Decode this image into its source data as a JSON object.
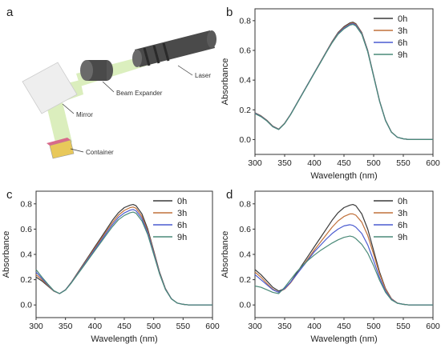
{
  "panels": {
    "a": {
      "letter": "a",
      "labels": {
        "laser": "Laser",
        "beam_expander": "Beam Expander",
        "mirror": "Mirror",
        "container": "Container"
      }
    }
  },
  "colors": {
    "series": [
      "#3a3a3a",
      "#c0703a",
      "#4a5bd0",
      "#4a8a78"
    ],
    "beam": "#b9e08a",
    "laser_body": "#4a4a4a"
  },
  "chart_data": [
    {
      "panel": "b",
      "type": "line",
      "xlabel": "Wavelength (nm)",
      "ylabel": "Absorbance",
      "xlim": [
        300,
        600
      ],
      "ylim": [
        -0.1,
        0.88
      ],
      "xticks": [
        300,
        350,
        400,
        450,
        500,
        550,
        600
      ],
      "yticks": [
        0.0,
        0.2,
        0.4,
        0.6,
        0.8
      ],
      "legend": "top-right",
      "x": [
        300,
        310,
        320,
        330,
        340,
        350,
        360,
        370,
        380,
        390,
        400,
        410,
        420,
        430,
        440,
        450,
        460,
        465,
        470,
        480,
        490,
        500,
        510,
        520,
        530,
        540,
        550,
        560,
        570,
        580,
        590,
        600
      ],
      "series": [
        {
          "name": "0h",
          "values": [
            0.18,
            0.16,
            0.13,
            0.09,
            0.07,
            0.11,
            0.17,
            0.24,
            0.31,
            0.38,
            0.45,
            0.52,
            0.59,
            0.66,
            0.72,
            0.76,
            0.785,
            0.79,
            0.78,
            0.72,
            0.6,
            0.43,
            0.26,
            0.13,
            0.05,
            0.015,
            0.005,
            0.0,
            0.0,
            0.0,
            0.0,
            0.0
          ]
        },
        {
          "name": "3h",
          "values": [
            0.178,
            0.158,
            0.128,
            0.088,
            0.069,
            0.109,
            0.169,
            0.239,
            0.309,
            0.379,
            0.449,
            0.519,
            0.589,
            0.657,
            0.716,
            0.755,
            0.78,
            0.785,
            0.775,
            0.716,
            0.597,
            0.428,
            0.259,
            0.129,
            0.05,
            0.015,
            0.005,
            0.0,
            0.0,
            0.0,
            0.0,
            0.0
          ]
        },
        {
          "name": "6h",
          "values": [
            0.176,
            0.156,
            0.126,
            0.087,
            0.068,
            0.108,
            0.168,
            0.238,
            0.308,
            0.378,
            0.448,
            0.517,
            0.587,
            0.654,
            0.712,
            0.75,
            0.775,
            0.78,
            0.77,
            0.712,
            0.594,
            0.426,
            0.258,
            0.128,
            0.049,
            0.015,
            0.005,
            0.0,
            0.0,
            0.0,
            0.0,
            0.0
          ]
        },
        {
          "name": "9h",
          "values": [
            0.174,
            0.154,
            0.125,
            0.086,
            0.067,
            0.107,
            0.167,
            0.237,
            0.307,
            0.376,
            0.446,
            0.515,
            0.585,
            0.651,
            0.708,
            0.745,
            0.77,
            0.775,
            0.765,
            0.708,
            0.591,
            0.424,
            0.257,
            0.127,
            0.049,
            0.015,
            0.005,
            0.0,
            0.0,
            0.0,
            0.0,
            0.0
          ]
        }
      ]
    },
    {
      "panel": "c",
      "type": "line",
      "xlabel": "Wavelength (nm)",
      "ylabel": "Absorbance",
      "xlim": [
        300,
        600
      ],
      "ylim": [
        -0.1,
        0.9
      ],
      "xticks": [
        300,
        350,
        400,
        450,
        500,
        550,
        600
      ],
      "yticks": [
        0.0,
        0.2,
        0.4,
        0.6,
        0.8
      ],
      "legend": "top-right",
      "x": [
        300,
        310,
        320,
        330,
        340,
        350,
        360,
        370,
        380,
        390,
        400,
        410,
        420,
        430,
        440,
        450,
        460,
        465,
        470,
        480,
        490,
        500,
        510,
        520,
        530,
        540,
        550,
        560,
        570,
        580,
        590,
        600
      ],
      "series": [
        {
          "name": "0h",
          "values": [
            0.22,
            0.19,
            0.15,
            0.11,
            0.09,
            0.12,
            0.18,
            0.25,
            0.32,
            0.39,
            0.46,
            0.53,
            0.6,
            0.67,
            0.73,
            0.77,
            0.79,
            0.795,
            0.785,
            0.72,
            0.6,
            0.43,
            0.26,
            0.13,
            0.05,
            0.015,
            0.005,
            0.0,
            0.0,
            0.0,
            0.0,
            0.0
          ]
        },
        {
          "name": "3h",
          "values": [
            0.24,
            0.2,
            0.155,
            0.11,
            0.09,
            0.12,
            0.178,
            0.246,
            0.314,
            0.382,
            0.45,
            0.518,
            0.586,
            0.652,
            0.71,
            0.748,
            0.77,
            0.775,
            0.765,
            0.7,
            0.585,
            0.42,
            0.255,
            0.128,
            0.05,
            0.015,
            0.005,
            0.0,
            0.0,
            0.0,
            0.0,
            0.0
          ]
        },
        {
          "name": "6h",
          "values": [
            0.26,
            0.21,
            0.16,
            0.112,
            0.09,
            0.119,
            0.176,
            0.242,
            0.308,
            0.374,
            0.44,
            0.506,
            0.572,
            0.636,
            0.692,
            0.728,
            0.75,
            0.755,
            0.745,
            0.683,
            0.57,
            0.41,
            0.25,
            0.125,
            0.049,
            0.015,
            0.005,
            0.0,
            0.0,
            0.0,
            0.0,
            0.0
          ]
        },
        {
          "name": "9h",
          "values": [
            0.28,
            0.22,
            0.165,
            0.114,
            0.09,
            0.118,
            0.174,
            0.238,
            0.302,
            0.366,
            0.43,
            0.494,
            0.558,
            0.62,
            0.674,
            0.708,
            0.73,
            0.735,
            0.725,
            0.665,
            0.556,
            0.4,
            0.245,
            0.122,
            0.048,
            0.015,
            0.005,
            0.0,
            0.0,
            0.0,
            0.0,
            0.0
          ]
        }
      ]
    },
    {
      "panel": "d",
      "type": "line",
      "xlabel": "Wavelength (nm)",
      "ylabel": "Absorbance",
      "xlim": [
        300,
        600
      ],
      "ylim": [
        -0.1,
        0.9
      ],
      "xticks": [
        300,
        350,
        400,
        450,
        500,
        550,
        600
      ],
      "yticks": [
        0.0,
        0.2,
        0.4,
        0.6,
        0.8
      ],
      "legend": "top-right",
      "x": [
        300,
        310,
        320,
        330,
        340,
        350,
        360,
        370,
        380,
        390,
        400,
        410,
        420,
        430,
        440,
        450,
        460,
        465,
        470,
        480,
        490,
        500,
        510,
        520,
        530,
        540,
        550,
        560,
        570,
        580,
        590,
        600
      ],
      "series": [
        {
          "name": "0h",
          "values": [
            0.28,
            0.24,
            0.19,
            0.14,
            0.11,
            0.13,
            0.18,
            0.25,
            0.32,
            0.39,
            0.46,
            0.53,
            0.6,
            0.67,
            0.73,
            0.77,
            0.79,
            0.795,
            0.785,
            0.72,
            0.6,
            0.43,
            0.26,
            0.13,
            0.05,
            0.015,
            0.005,
            0.0,
            0.0,
            0.0,
            0.0,
            0.0
          ]
        },
        {
          "name": "3h",
          "values": [
            0.26,
            0.22,
            0.17,
            0.125,
            0.1,
            0.125,
            0.175,
            0.24,
            0.305,
            0.37,
            0.435,
            0.495,
            0.555,
            0.615,
            0.665,
            0.7,
            0.72,
            0.72,
            0.71,
            0.655,
            0.55,
            0.4,
            0.245,
            0.125,
            0.048,
            0.015,
            0.005,
            0.0,
            0.0,
            0.0,
            0.0,
            0.0
          ]
        },
        {
          "name": "6h",
          "values": [
            0.24,
            0.2,
            0.16,
            0.12,
            0.1,
            0.13,
            0.18,
            0.24,
            0.3,
            0.36,
            0.42,
            0.47,
            0.52,
            0.565,
            0.6,
            0.625,
            0.635,
            0.63,
            0.615,
            0.565,
            0.475,
            0.35,
            0.215,
            0.11,
            0.044,
            0.014,
            0.005,
            0.0,
            0.0,
            0.0,
            0.0,
            0.0
          ]
        },
        {
          "name": "9h",
          "values": [
            0.15,
            0.14,
            0.12,
            0.1,
            0.09,
            0.14,
            0.2,
            0.26,
            0.31,
            0.355,
            0.395,
            0.43,
            0.46,
            0.49,
            0.515,
            0.535,
            0.545,
            0.54,
            0.525,
            0.48,
            0.41,
            0.31,
            0.195,
            0.1,
            0.04,
            0.013,
            0.005,
            0.0,
            0.0,
            0.0,
            0.0,
            0.0
          ]
        }
      ]
    }
  ]
}
